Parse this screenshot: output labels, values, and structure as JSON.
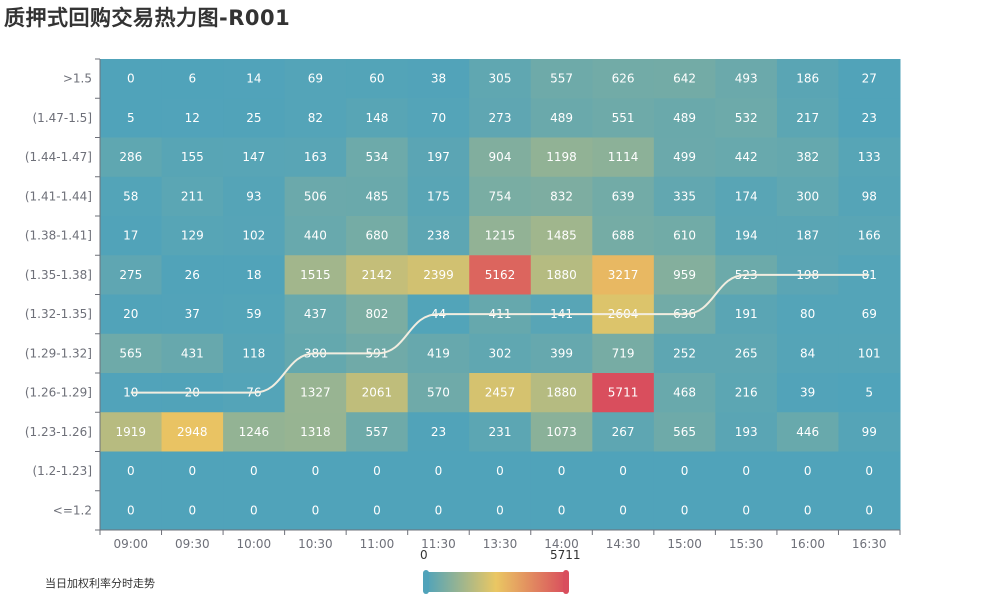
{
  "title": "质押式回购交易热力图-R001",
  "chart_data": {
    "type": "heatmap",
    "title": "质押式回购交易热力图-R001",
    "x_categories": [
      "09:00",
      "09:30",
      "10:00",
      "10:30",
      "11:00",
      "11:30",
      "13:30",
      "14:00",
      "14:30",
      "15:00",
      "15:30",
      "16:00",
      "16:30"
    ],
    "y_categories": [
      ">1.5",
      "(1.47-1.5]",
      "(1.44-1.47]",
      "(1.41-1.44]",
      "(1.38-1.41]",
      "(1.35-1.38]",
      "(1.32-1.35]",
      "(1.29-1.32]",
      "(1.26-1.29]",
      "(1.23-1.26]",
      "(1.2-1.23]",
      "<=1.2"
    ],
    "values": [
      [
        0,
        6,
        14,
        69,
        60,
        38,
        305,
        557,
        626,
        642,
        493,
        186,
        27
      ],
      [
        5,
        12,
        25,
        82,
        148,
        70,
        273,
        489,
        551,
        489,
        532,
        217,
        23
      ],
      [
        286,
        155,
        147,
        163,
        534,
        197,
        904,
        1198,
        1114,
        499,
        442,
        382,
        133
      ],
      [
        58,
        211,
        93,
        506,
        485,
        175,
        754,
        832,
        639,
        335,
        174,
        300,
        98
      ],
      [
        17,
        129,
        102,
        440,
        680,
        238,
        1215,
        1485,
        688,
        610,
        194,
        187,
        166
      ],
      [
        275,
        26,
        18,
        1515,
        2142,
        2399,
        5162,
        1880,
        3217,
        959,
        523,
        198,
        81
      ],
      [
        20,
        37,
        59,
        437,
        802,
        44,
        411,
        141,
        2604,
        636,
        191,
        80,
        69
      ],
      [
        565,
        431,
        118,
        380,
        591,
        419,
        302,
        399,
        719,
        252,
        265,
        84,
        101
      ],
      [
        10,
        20,
        76,
        1327,
        2061,
        570,
        2457,
        1880,
        5711,
        468,
        216,
        39,
        5
      ],
      [
        1919,
        2948,
        1246,
        1318,
        557,
        23,
        231,
        1073,
        267,
        565,
        193,
        446,
        99
      ],
      [
        0,
        0,
        0,
        0,
        0,
        0,
        0,
        0,
        0,
        0,
        0,
        0,
        0
      ],
      [
        0,
        0,
        0,
        0,
        0,
        0,
        0,
        0,
        0,
        0,
        0,
        0,
        0
      ]
    ],
    "visual_map": {
      "min": 0,
      "max": 5711,
      "min_label": "0",
      "max_label": "5711",
      "colors": [
        "#50a3ba",
        "#eac763",
        "#d94e5d"
      ]
    },
    "line_series": {
      "name": "当日加权利率分时走势",
      "color": "#f2ede0",
      "y_values": [
        "(1.26-1.29]",
        "(1.26-1.29]",
        "(1.26-1.29]",
        "(1.29-1.32]",
        "(1.29-1.32]",
        "(1.32-1.35]",
        "(1.32-1.35]",
        "(1.32-1.35]",
        "(1.32-1.35]",
        "(1.32-1.35]",
        "(1.35-1.38]",
        "(1.35-1.38]",
        "(1.35-1.38]"
      ]
    }
  }
}
